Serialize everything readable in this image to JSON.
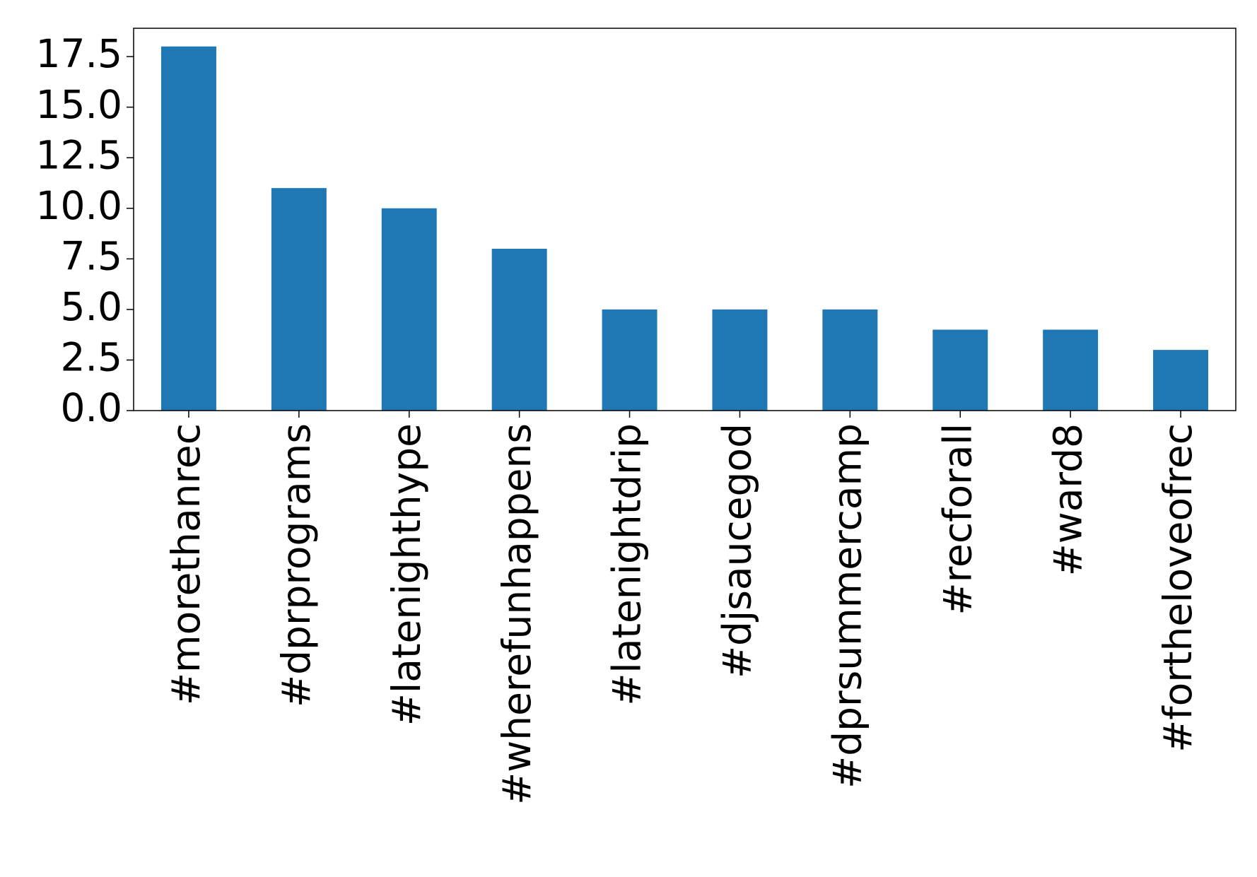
{
  "chart_data": {
    "type": "bar",
    "categories": [
      "#morethanrec",
      "#dprprograms",
      "#latenighthype",
      "#wherefunhappens",
      "#latenightdrip",
      "#djsaucegod",
      "#dprsummercamp",
      "#recforall",
      "#ward8",
      "#fortheloveofrec"
    ],
    "values": [
      18,
      11,
      10,
      8,
      5,
      5,
      5,
      4,
      4,
      3
    ],
    "color": "#1f77b4",
    "ylim": [
      0,
      18.9
    ],
    "yticks": [
      {
        "value": 0,
        "label": "0.0"
      },
      2.5,
      {
        "value": 5,
        "label": "5.0"
      },
      7.5,
      {
        "value": 10,
        "label": "10.0"
      },
      12.5,
      {
        "value": 15,
        "label": "15.0"
      },
      17.5
    ],
    "grid": false
  }
}
